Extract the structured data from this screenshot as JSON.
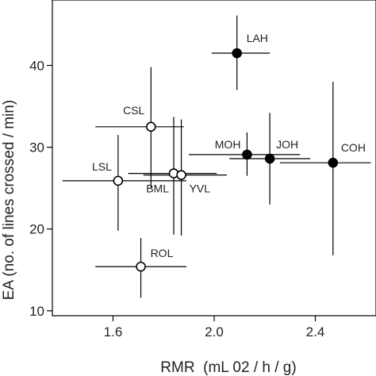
{
  "chart_data": {
    "type": "scatter",
    "xlabel": "RMR  (mL 02 / h / g)",
    "ylabel": "EA (no. of lines crossed / min)",
    "xlim": [
      1.36,
      2.64
    ],
    "ylim": [
      9.4,
      48.0
    ],
    "xticks": [
      "1.6",
      "2.0",
      "2.4"
    ],
    "xtick_values": [
      1.6,
      2.0,
      2.4
    ],
    "yticks": [
      "10",
      "20",
      "30",
      "40"
    ],
    "ytick_values": [
      10,
      20,
      30,
      40
    ],
    "grid": false,
    "marker_colors": {
      "filled": "#000000",
      "open": "#ffffff",
      "stroke": "#000000"
    },
    "points": [
      {
        "label": "LAH",
        "x": 2.09,
        "y": 41.5,
        "xerr": [
          1.99,
          2.22
        ],
        "yerr": [
          37.0,
          46.1
        ],
        "filled": true
      },
      {
        "label": "CSL",
        "x": 1.75,
        "y": 32.5,
        "xerr": [
          1.53,
          1.88
        ],
        "yerr": [
          25.0,
          39.8
        ],
        "filled": false
      },
      {
        "label": "MOH",
        "x": 2.13,
        "y": 29.1,
        "xerr": [
          1.9,
          2.34
        ],
        "yerr": [
          26.5,
          31.8
        ],
        "filled": true
      },
      {
        "label": "JOH",
        "x": 2.22,
        "y": 28.6,
        "xerr": [
          2.06,
          2.38
        ],
        "yerr": [
          23.0,
          34.2
        ],
        "filled": true
      },
      {
        "label": "COH",
        "x": 2.47,
        "y": 28.1,
        "xerr": [
          2.26,
          2.62
        ],
        "yerr": [
          16.8,
          38.0
        ],
        "filled": true
      },
      {
        "label": "LSL",
        "x": 1.62,
        "y": 25.9,
        "xerr": [
          1.4,
          1.89
        ],
        "yerr": [
          19.8,
          31.5
        ],
        "filled": false
      },
      {
        "label": "BML",
        "x": 1.84,
        "y": 26.8,
        "xerr": [
          1.66,
          2.01
        ],
        "yerr": [
          19.3,
          33.7
        ],
        "filled": false
      },
      {
        "label": "YVL",
        "x": 1.87,
        "y": 26.6,
        "xerr": [
          1.72,
          2.05
        ],
        "yerr": [
          19.2,
          33.4
        ],
        "filled": false
      },
      {
        "label": "ROL",
        "x": 1.71,
        "y": 15.4,
        "xerr": [
          1.53,
          1.89
        ],
        "yerr": [
          11.6,
          18.9
        ],
        "filled": false
      }
    ]
  }
}
